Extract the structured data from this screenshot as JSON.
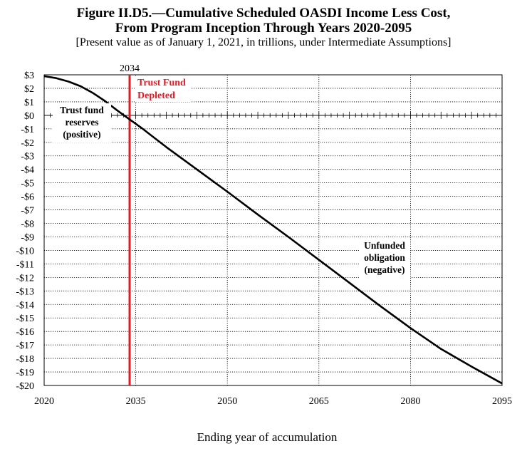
{
  "title_line1": "Figure II.D5.—Cumulative Scheduled OASDI Income Less Cost,",
  "title_line2": "From Program Inception Through Years 2020-2095",
  "subtitle": "[Present value as of January 1, 2021, in trillions, under Intermediate Assumptions]",
  "colors": {
    "line": "#000000",
    "marker": "#e01b24",
    "grid": "#000000"
  },
  "chart_data": {
    "type": "line",
    "title": "Figure II.D5.—Cumulative Scheduled OASDI Income Less Cost, From Program Inception Through Years 2020-2095",
    "subtitle": "[Present value as of January 1, 2021, in trillions, under Intermediate Assumptions]",
    "xlabel": "Ending year of accumulation",
    "ylabel": "",
    "xlim": [
      2020,
      2095
    ],
    "ylim": [
      -20,
      3
    ],
    "x_ticks": [
      2020,
      2035,
      2050,
      2065,
      2080,
      2095
    ],
    "x_tick_labels": [
      "2020",
      "2035",
      "2050",
      "2065",
      "2080",
      "2095"
    ],
    "y_ticks": [
      3,
      2,
      1,
      0,
      -1,
      -2,
      -3,
      -4,
      -5,
      -6,
      -7,
      -8,
      -9,
      -10,
      -11,
      -12,
      -13,
      -14,
      -15,
      -16,
      -17,
      -18,
      -19,
      -20
    ],
    "y_tick_labels": [
      "$3",
      "$2",
      "$1",
      "$0",
      "-$1",
      "-$2",
      "-$3",
      "-$4",
      "-$5",
      "-$6",
      "-$7",
      "-$8",
      "-$9",
      "-$10",
      "-$11",
      "-$12",
      "-$13",
      "-$14",
      "-$15",
      "-$16",
      "-$17",
      "-$18",
      "-$19",
      "-$20"
    ],
    "grid": true,
    "series": [
      {
        "x": [
          2020,
          2022,
          2024,
          2026,
          2028,
          2030,
          2032,
          2034,
          2036,
          2038,
          2040,
          2045,
          2050,
          2055,
          2060,
          2065,
          2070,
          2075,
          2080,
          2085,
          2090,
          2095
        ],
        "values": [
          2.9,
          2.75,
          2.5,
          2.15,
          1.65,
          1.05,
          0.35,
          -0.3,
          -0.95,
          -1.65,
          -2.35,
          -4.0,
          -5.65,
          -7.35,
          -9.0,
          -10.7,
          -12.4,
          -14.1,
          -15.75,
          -17.3,
          -18.6,
          -19.85
        ]
      }
    ],
    "markers": [
      {
        "x": 2034,
        "label_top": "2034",
        "label_line1": "Trust Fund",
        "label_line2": "Depleted"
      }
    ],
    "annotations": [
      {
        "lines": [
          "Trust fund",
          "reserves",
          "(positive)"
        ]
      },
      {
        "lines": [
          "Unfunded",
          "obligation",
          "(negative)"
        ]
      }
    ]
  }
}
